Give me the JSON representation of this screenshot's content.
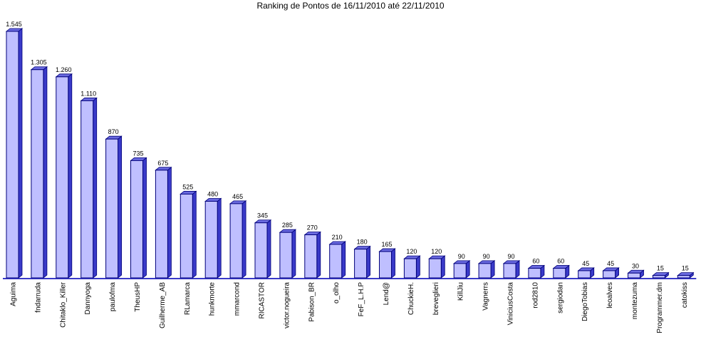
{
  "chart_data": {
    "type": "bar",
    "title": "Ranking de Pontos de 16/11/2010 até 22/11/2010",
    "xlabel": "",
    "ylabel": "",
    "ylim": [
      0,
      1545
    ],
    "grid": false,
    "legend": "none",
    "bar_style": "3d",
    "colors": {
      "bar_front": "#bfbfff",
      "bar_side": "#3a3ac8",
      "bar_top": "#6a6ae0",
      "bar_edge": "#00007a",
      "baseline": "#3a3ac8"
    },
    "categories": [
      "Aguima",
      "fndarruda",
      "Chitaklo_Killer",
      "Dannyoga",
      "paulofma",
      "TheusHP",
      "Guilherme_AB",
      "RLamarca",
      "hunkmorte",
      "mmarcond",
      "RICASTOR",
      "victor.nogueira",
      "Pabison_BR",
      "o_olho",
      "FeF_L.H.P",
      "Lend@",
      "ChuckieH.",
      "breveglieri",
      "KillJiu",
      "Vagnerrs",
      "ViniciusCosta",
      "rod2810",
      "sergiodan",
      "DiegoTobias",
      "leoalves",
      "montezuma",
      "Programmer.dm",
      "catokiss"
    ],
    "values": [
      1545,
      1305,
      1260,
      1110,
      870,
      735,
      675,
      525,
      480,
      465,
      345,
      285,
      270,
      210,
      180,
      165,
      120,
      120,
      90,
      90,
      90,
      60,
      60,
      45,
      45,
      30,
      15,
      15
    ],
    "value_labels": [
      "1.545",
      "1.305",
      "1.260",
      "1.110",
      "870",
      "735",
      "675",
      "525",
      "480",
      "465",
      "345",
      "285",
      "270",
      "210",
      "180",
      "165",
      "120",
      "120",
      "90",
      "90",
      "90",
      "60",
      "60",
      "45",
      "45",
      "30",
      "15",
      "15"
    ]
  }
}
